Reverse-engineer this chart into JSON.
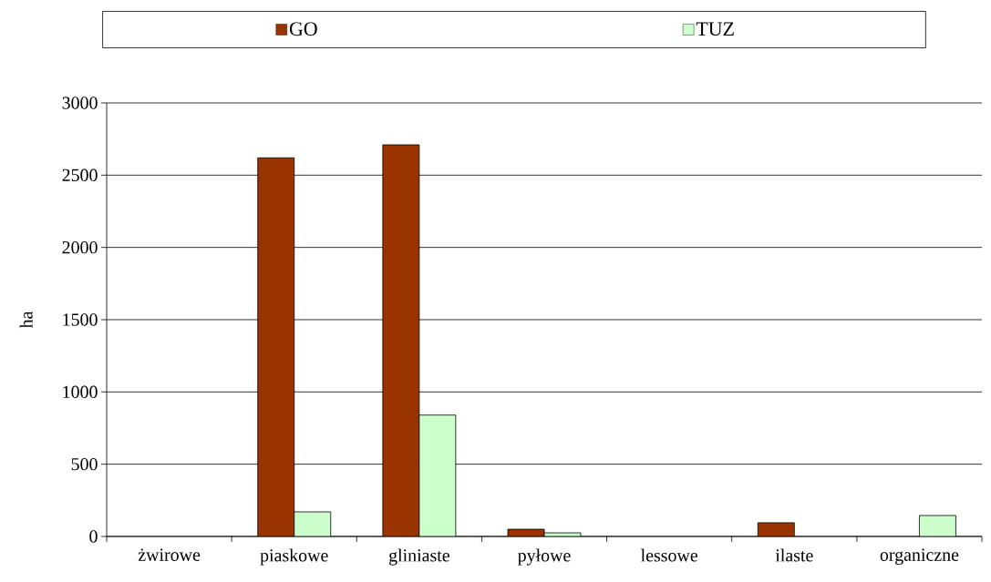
{
  "chart_data": {
    "type": "bar",
    "ylabel": "ha",
    "categories": [
      "żwirowe",
      "piaskowe",
      "gliniaste",
      "pyłowe",
      "lessowe",
      "ilaste",
      "organiczne"
    ],
    "series": [
      {
        "name": "GO",
        "color": "#993300",
        "values": [
          0,
          2620,
          2710,
          50,
          0,
          95,
          0
        ]
      },
      {
        "name": "TUZ",
        "color": "#ccffcc",
        "values": [
          0,
          170,
          840,
          25,
          0,
          0,
          145
        ]
      }
    ],
    "ylim": [
      0,
      3000
    ],
    "yticks": [
      0,
      500,
      1000,
      1500,
      2000,
      2500,
      3000
    ],
    "grid": "y",
    "legend": "top"
  }
}
